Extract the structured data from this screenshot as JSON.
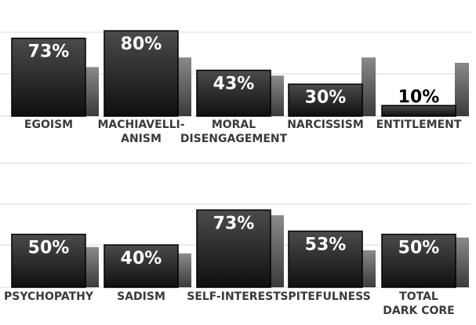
{
  "colors": {
    "front_top": "#4b4b4b",
    "front_bottom": "#0f0f0f",
    "back_top": "#8a8a8a",
    "back_bottom": "#3a3a3a",
    "label_on_bar": "#ffffff",
    "label_above_bar": "#000000",
    "grid": "#d8d8d8",
    "category_text": "#3a3a3a"
  },
  "chart_data": [
    {
      "type": "bar",
      "title": "",
      "xlabel": "",
      "ylabel": "",
      "ylim": [
        0,
        100
      ],
      "grid": true,
      "legend": "none",
      "value_format": "percent",
      "categories": [
        [
          "EGOISM"
        ],
        [
          "MACHIAVELLI-",
          "ANISM"
        ],
        [
          "MORAL",
          "DISENGAGEMENT"
        ],
        [
          "NARCISSISM"
        ],
        [
          "ENTITLEMENT"
        ]
      ],
      "category_labels": [
        "EGOISM",
        "MACHIAVELLI- ANISM",
        "MORAL DISENGAGEMENT",
        "NARCISSISM",
        "ENTITLEMENT"
      ],
      "series": [
        {
          "values": [
            73,
            80,
            43,
            30,
            10
          ],
          "labels": [
            "73%",
            "80%",
            "43%",
            "30%",
            "10%"
          ]
        },
        {
          "values": [
            46,
            55,
            38,
            55,
            50
          ]
        }
      ]
    },
    {
      "type": "bar",
      "title": "",
      "xlabel": "",
      "ylabel": "",
      "ylim": [
        0,
        100
      ],
      "grid": true,
      "legend": "none",
      "value_format": "percent",
      "categories": [
        [
          "PSYCHOPATHY"
        ],
        [
          "SADISM"
        ],
        [
          "SELF-INTEREST"
        ],
        [
          "SPITEFULNESS"
        ],
        [
          "TOTAL",
          "DARK CORE"
        ]
      ],
      "category_labels": [
        "PSYCHOPATHY",
        "SADISM",
        "SELF-INTEREST",
        "SPITEFULNESS",
        "TOTAL DARK CORE"
      ],
      "series": [
        {
          "values": [
            50,
            40,
            73,
            53,
            50
          ],
          "labels": [
            "50%",
            "40%",
            "73%",
            "53%",
            "50%"
          ]
        },
        {
          "values": [
            38,
            32,
            68,
            35,
            47
          ]
        }
      ]
    }
  ]
}
